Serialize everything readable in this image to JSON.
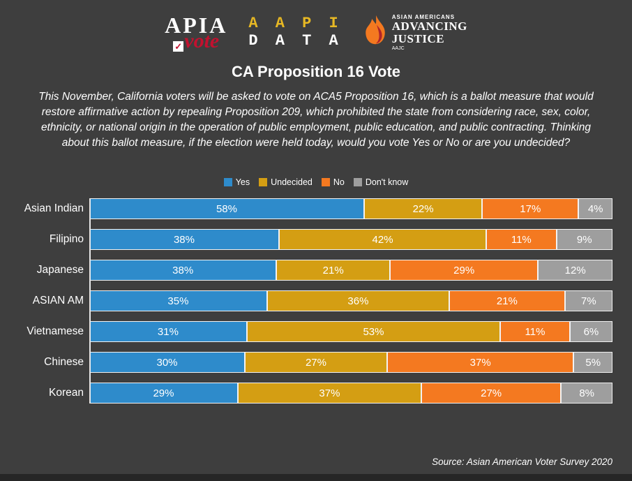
{
  "logos": {
    "apia": {
      "line1": "APIA",
      "line2": "vote",
      "check_glyph": "✓"
    },
    "aapi": {
      "line1": "A A P I",
      "line2": "D A T A"
    },
    "aajc": {
      "top": "ASIAN AMERICANS",
      "mid1": "ADVANCING",
      "mid2": "JUSTICE",
      "bottom": "AAJC"
    }
  },
  "title": "CA Proposition 16 Vote",
  "description": "This November, California voters will be asked to vote on ACA5 Proposition 16,  which is a ballot measure that would restore affirmative action by repealing Proposition 209, which prohibited the state from considering race, sex, color, ethnicity, or national origin in the operation of public employment, public education, and public contracting. Thinking about this ballot measure, if the election were held today, would you vote Yes or No or are you undecided?",
  "source": "Source: Asian American Voter Survey 2020",
  "colors": {
    "background": "#3e3e3e",
    "yes": "#2e8bcb",
    "undecided": "#d49e13",
    "no": "#f47920",
    "dont_know": "#9e9e9e"
  },
  "chart_data": {
    "type": "bar",
    "orientation": "horizontal",
    "stacked": true,
    "legend_position": "top",
    "value_suffix": "%",
    "categories": [
      "Asian Indian",
      "Filipino",
      "Japanese",
      "ASIAN AM",
      "Vietnamese",
      "Chinese",
      "Korean"
    ],
    "series": [
      {
        "name": "Yes",
        "color": "#2e8bcb",
        "values": [
          58,
          38,
          38,
          35,
          31,
          30,
          29
        ]
      },
      {
        "name": "Undecided",
        "color": "#d49e13",
        "values": [
          22,
          42,
          21,
          36,
          53,
          27,
          37
        ]
      },
      {
        "name": "No",
        "color": "#f47920",
        "values": [
          17,
          11,
          29,
          21,
          11,
          37,
          27
        ]
      },
      {
        "name": "Don't know",
        "color": "#9e9e9e",
        "values": [
          4,
          9,
          12,
          7,
          6,
          5,
          8
        ]
      }
    ]
  }
}
